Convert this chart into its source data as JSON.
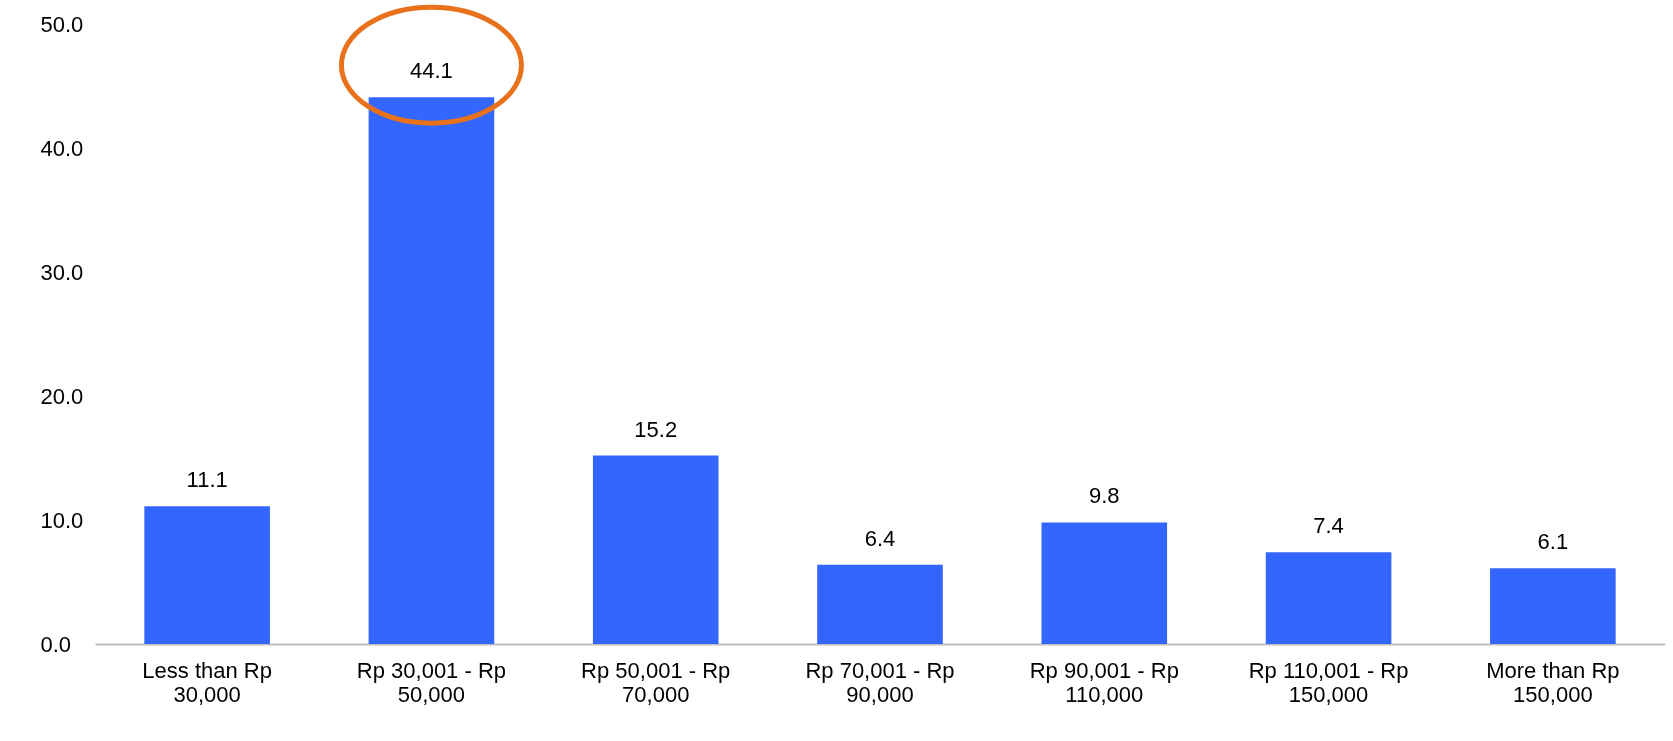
{
  "chart_data": {
    "type": "bar",
    "categories": [
      "Less than Rp 30,000",
      "Rp 30,001 - Rp 50,000",
      "Rp 50,001 - Rp 70,000",
      "Rp 70,001 - Rp 90,000",
      "Rp 90,001 - Rp 110,000",
      "Rp 110,001 - Rp 150,000",
      "More than Rp 150,000"
    ],
    "values": [
      11.1,
      44.1,
      15.2,
      6.4,
      9.8,
      7.4,
      6.1
    ],
    "color": "#3366ff",
    "ylim": [
      0,
      50
    ],
    "yticks": [
      {
        "value": 0,
        "label": "0.0"
      },
      {
        "value": 10,
        "label": "10.0"
      },
      {
        "value": 20,
        "label": "20.0"
      },
      {
        "value": 30,
        "label": "30.0"
      },
      {
        "value": 40,
        "label": "40.0"
      },
      {
        "value": 50,
        "label": "50.0"
      }
    ],
    "data_labels": true,
    "grid": false
  }
}
